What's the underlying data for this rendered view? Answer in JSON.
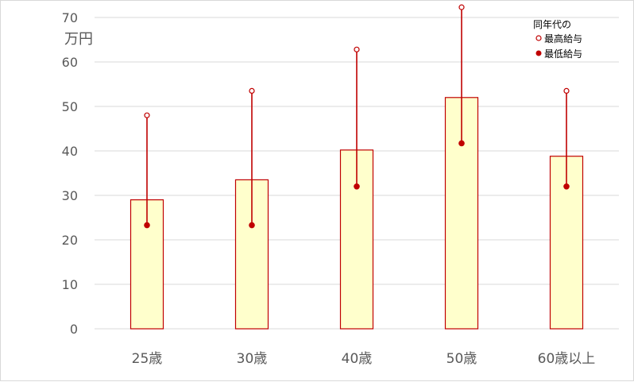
{
  "chart_data": {
    "type": "bar",
    "title": "",
    "xlabel": "",
    "ylabel": "万円",
    "ylim": [
      0,
      70
    ],
    "yticks": [
      "0",
      "10",
      "20",
      "30",
      "40",
      "50",
      "60",
      "70"
    ],
    "categories": [
      "25歳",
      "30歳",
      "40歳",
      "50歳",
      "60歳以上"
    ],
    "series": [
      {
        "values": [
          29,
          33.5,
          40.2,
          52,
          38.8
        ]
      },
      {
        "name": "最高給与",
        "values": [
          48,
          53.5,
          62.8,
          72.3,
          53.5
        ]
      },
      {
        "name": "最低給与",
        "values": [
          23.3,
          23.3,
          32,
          41.7,
          32
        ]
      }
    ],
    "legend_title": "同年代の",
    "legend_position": "top-right",
    "grid": true
  },
  "colors": {
    "bar_fill": "#FFFFCC",
    "bar_stroke": "#C00000",
    "range_line": "#C00000",
    "marker": "#C00000",
    "grid": "#D9D9D9"
  }
}
